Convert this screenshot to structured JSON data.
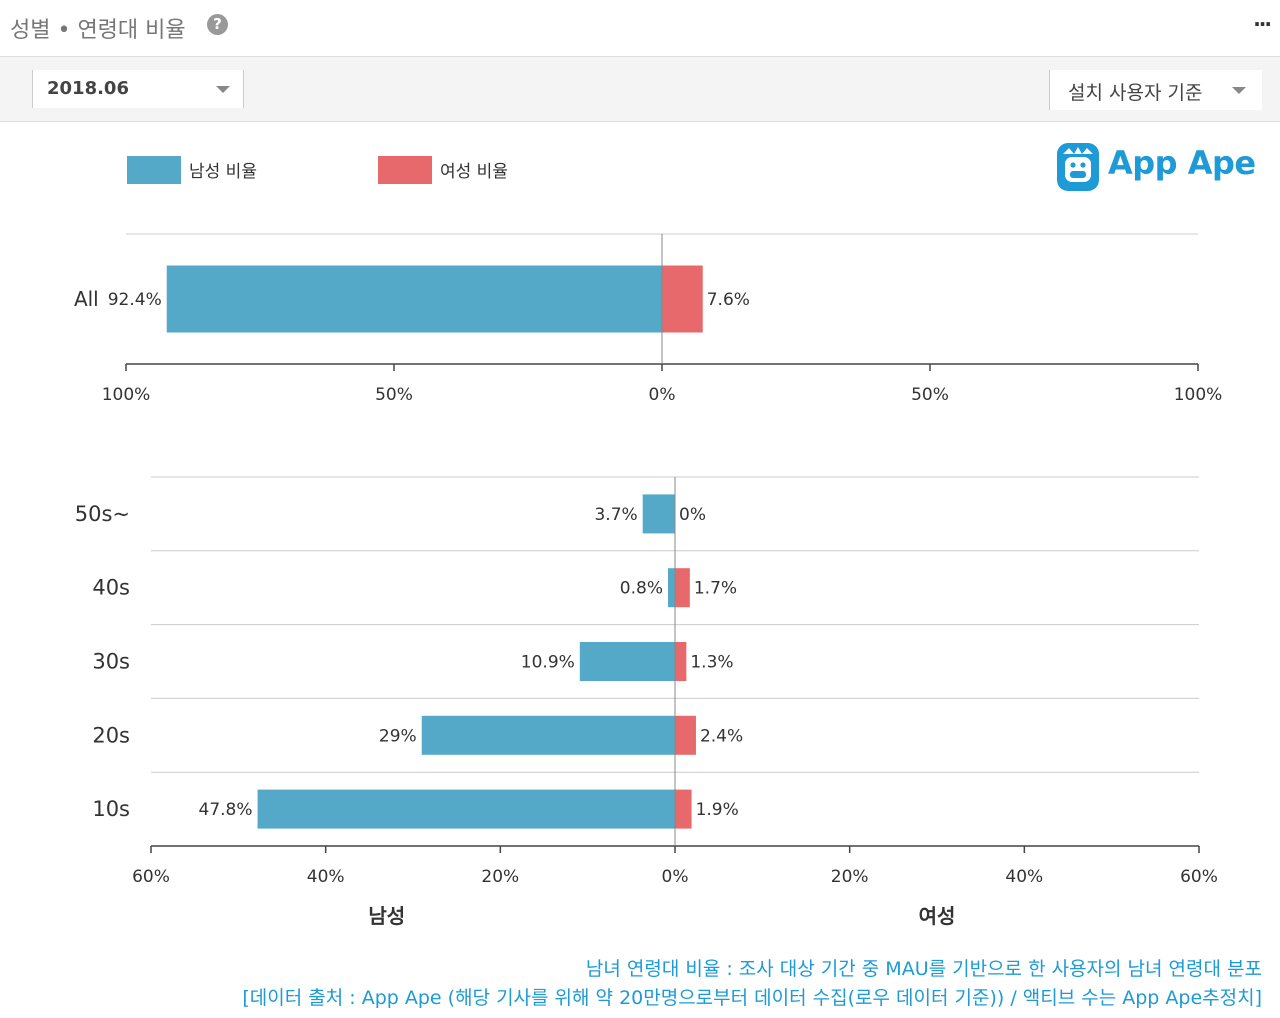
{
  "header": {
    "title": "성별 • 연령대 비율",
    "help_icon": "question-circle-icon",
    "more_icon": "more-dots-icon"
  },
  "filters": {
    "date": "2018.06",
    "basis": "설치 사용자 기준"
  },
  "logo": {
    "name": "App Ape",
    "icon": "app-ape-logo-icon"
  },
  "colors": {
    "male": "#54a9c9",
    "female": "#e8696b",
    "accent": "#1e9ad6"
  },
  "chart_data": [
    {
      "type": "bar",
      "orientation": "horizontal-diverging",
      "legend": [
        "남성 비율",
        "여성 비율"
      ],
      "legend_position": "top-left",
      "categories": [
        "All"
      ],
      "series": [
        {
          "name": "남성 비율",
          "values": [
            92.4
          ],
          "labels": [
            "92.4%"
          ]
        },
        {
          "name": "여성 비율",
          "values": [
            7.6
          ],
          "labels": [
            "7.6%"
          ]
        }
      ],
      "xlim": [
        -100,
        100
      ],
      "ticks": [
        {
          "value": -100,
          "label": "100%"
        },
        {
          "value": -50,
          "label": "50%"
        },
        {
          "value": 0,
          "label": "0%"
        },
        {
          "value": 50,
          "label": "50%"
        },
        {
          "value": 100,
          "label": "100%"
        }
      ]
    },
    {
      "type": "bar",
      "orientation": "horizontal-diverging",
      "categories": [
        "50s~",
        "40s",
        "30s",
        "20s",
        "10s"
      ],
      "series": [
        {
          "name": "남성",
          "values": [
            3.7,
            0.8,
            10.9,
            29,
            47.8
          ],
          "labels": [
            "3.7%",
            "0.8%",
            "10.9%",
            "29%",
            "47.8%"
          ]
        },
        {
          "name": "여성",
          "values": [
            0,
            1.7,
            1.3,
            2.4,
            1.9
          ],
          "labels": [
            "0%",
            "1.7%",
            "1.3%",
            "2.4%",
            "1.9%"
          ]
        }
      ],
      "xlim": [
        -60,
        60
      ],
      "ticks": [
        {
          "value": -60,
          "label": "60%"
        },
        {
          "value": -40,
          "label": "40%"
        },
        {
          "value": -20,
          "label": "20%"
        },
        {
          "value": 0,
          "label": "0%"
        },
        {
          "value": 20,
          "label": "20%"
        },
        {
          "value": 40,
          "label": "40%"
        },
        {
          "value": 60,
          "label": "60%"
        }
      ],
      "xlabel_left": "남성",
      "xlabel_right": "여성"
    }
  ],
  "footer": {
    "line1": "남녀 연령대 비율 : 조사 대상 기간 중 MAU를 기반으로 한 사용자의 남녀 연령대 분포",
    "line2": "[데이터 출처 : App Ape (해당 기사를 위해 약 20만명으로부터 데이터 수집(로우 데이터 기준)) / 액티브 수는 App Ape추정치]"
  }
}
